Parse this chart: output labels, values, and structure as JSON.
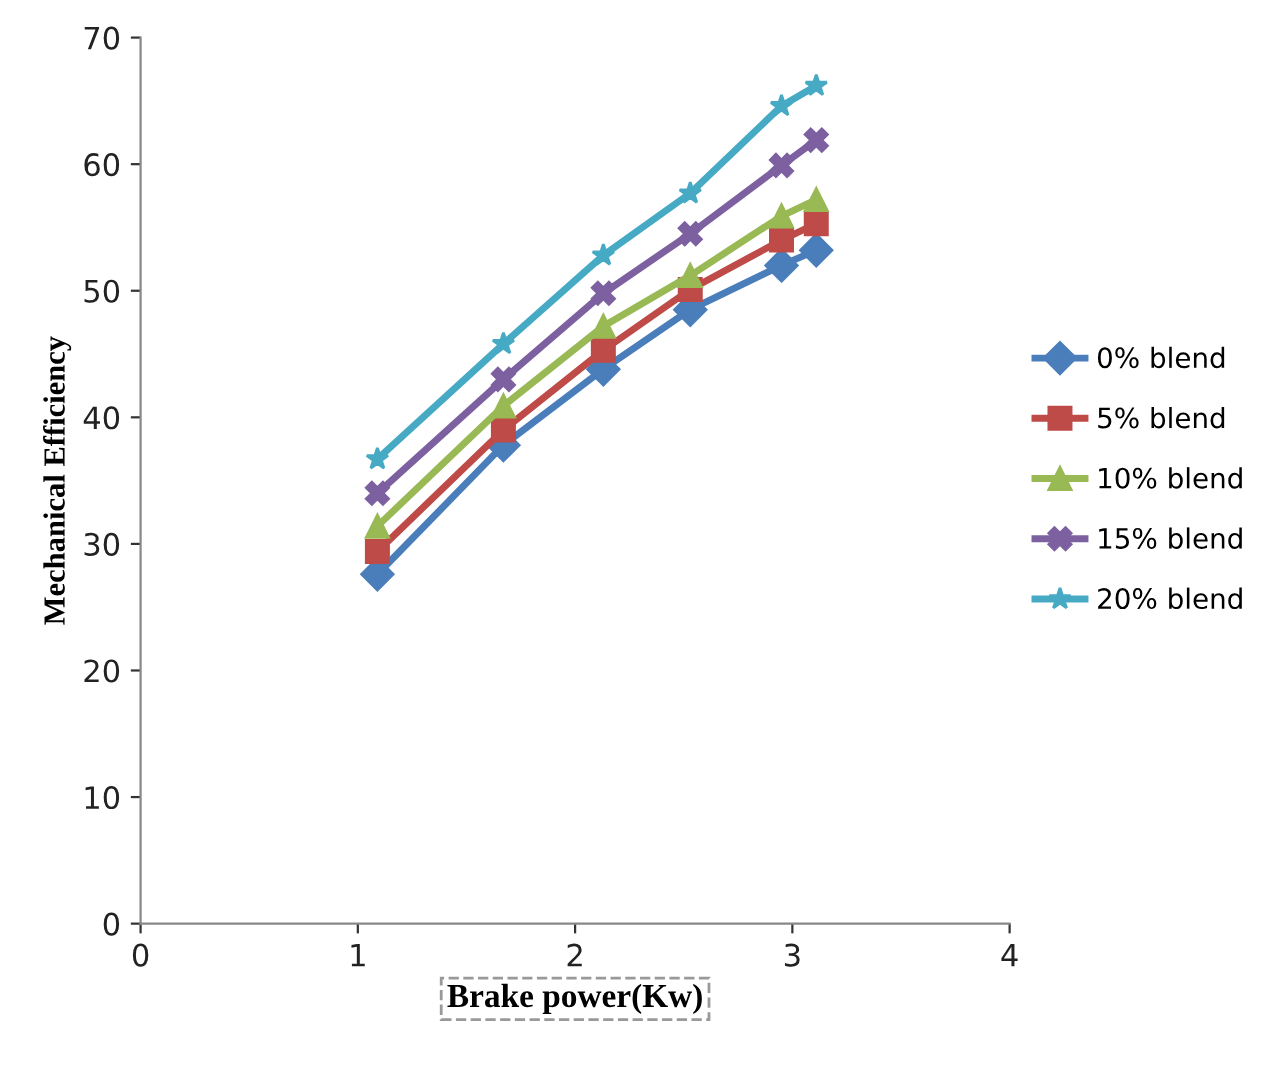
{
  "chart_data": {
    "type": "line",
    "xlabel": "Brake power(Kw)",
    "ylabel": "Mechanical Efficiency",
    "x": [
      1.09,
      1.67,
      2.13,
      2.53,
      2.95,
      3.11
    ],
    "series": [
      {
        "name": "0% blend",
        "color": "#4a7ebb",
        "marker": "diamond",
        "values": [
          27.6,
          37.8,
          43.8,
          48.5,
          52.0,
          53.2
        ]
      },
      {
        "name": "5% blend",
        "color": "#be4b48",
        "marker": "square",
        "values": [
          29.4,
          39.0,
          45.3,
          50.1,
          54.0,
          55.3
        ]
      },
      {
        "name": "10% blend",
        "color": "#98b954",
        "marker": "triangle",
        "values": [
          31.4,
          40.9,
          47.2,
          51.2,
          55.9,
          57.2
        ]
      },
      {
        "name": "15% blend",
        "color": "#7d60a0",
        "marker": "cross",
        "values": [
          34.0,
          43.0,
          49.8,
          54.5,
          59.9,
          61.9
        ]
      },
      {
        "name": "20% blend",
        "color": "#46aac5",
        "marker": "star",
        "values": [
          36.7,
          45.8,
          52.8,
          57.7,
          64.6,
          66.2
        ]
      }
    ],
    "xlim": [
      0,
      4
    ],
    "xticks": [
      0,
      1,
      2,
      3,
      4
    ],
    "ylim": [
      0,
      70
    ],
    "yticks": [
      0,
      10,
      20,
      30,
      40,
      50,
      60,
      70
    ],
    "grid": false,
    "legend": "right",
    "line_style": "solid"
  }
}
